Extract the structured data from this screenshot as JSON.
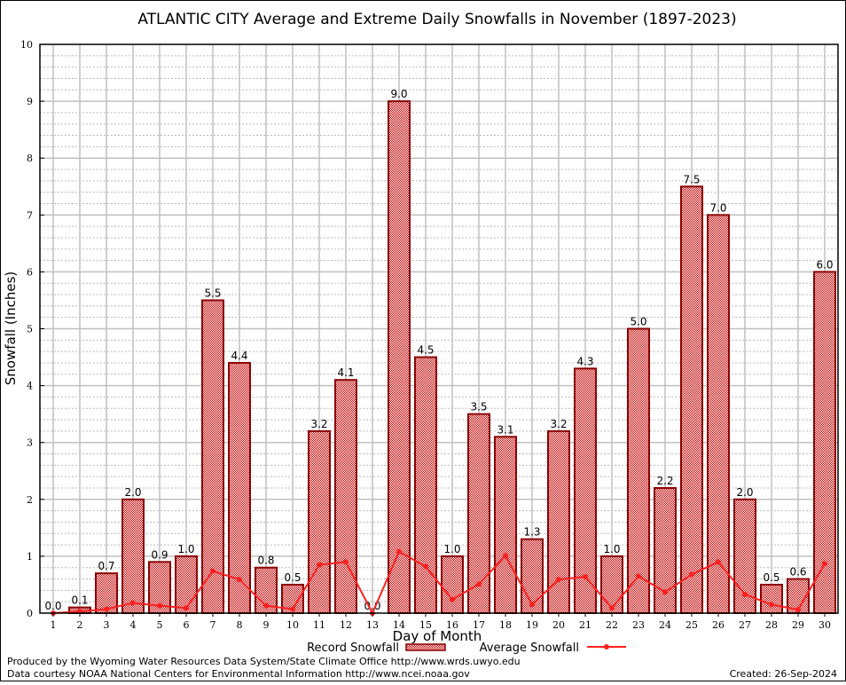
{
  "chart_data": {
    "type": "bar",
    "title": "ATLANTIC CITY Average and Extreme Daily Snowfalls in November (1897-2023)",
    "xlabel": "Day of Month",
    "ylabel": "Snowfall (Inches)",
    "ylim": [
      0,
      10
    ],
    "yticks": [
      "0",
      "1",
      "2",
      "3",
      "4",
      "5",
      "6",
      "7",
      "8",
      "9",
      "10"
    ],
    "grid": true,
    "categories": [
      "1",
      "2",
      "3",
      "4",
      "5",
      "6",
      "7",
      "8",
      "9",
      "10",
      "11",
      "12",
      "13",
      "14",
      "15",
      "16",
      "17",
      "18",
      "19",
      "20",
      "21",
      "22",
      "23",
      "24",
      "25",
      "26",
      "27",
      "28",
      "29",
      "30"
    ],
    "series": [
      {
        "name": "Record Snowfall",
        "type": "bar",
        "color": "#cc0000",
        "values": [
          0.0,
          0.1,
          0.7,
          2.0,
          0.9,
          1.0,
          5.5,
          4.4,
          0.8,
          0.5,
          3.2,
          4.1,
          0.0,
          9.0,
          4.5,
          1.0,
          3.5,
          3.1,
          1.3,
          3.2,
          4.3,
          1.0,
          5.0,
          2.2,
          7.5,
          7.0,
          2.0,
          0.5,
          0.6,
          6.0
        ],
        "labels": [
          "0.0",
          "0.1",
          "0.7",
          "2.0",
          "0.9",
          "1.0",
          "5.5",
          "4.4",
          "0.8",
          "0.5",
          "3.2",
          "4.1",
          "0.0",
          "9.0",
          "4.5",
          "1.0",
          "3.5",
          "3.1",
          "1.3",
          "3.2",
          "4.3",
          "1.0",
          "5.0",
          "2.2",
          "7.5",
          "7.0",
          "2.0",
          "0.5",
          "0.6",
          "6.0"
        ]
      },
      {
        "name": "Average Snowfall",
        "type": "line",
        "color": "#ff2020",
        "values": [
          0.0,
          0.03,
          0.07,
          0.18,
          0.13,
          0.09,
          0.74,
          0.59,
          0.13,
          0.07,
          0.85,
          0.9,
          0.0,
          1.08,
          0.82,
          0.24,
          0.51,
          1.01,
          0.15,
          0.59,
          0.64,
          0.09,
          0.65,
          0.37,
          0.68,
          0.9,
          0.33,
          0.15,
          0.06,
          0.87
        ]
      }
    ],
    "legend": "bottom-center"
  },
  "footer": {
    "produced_by": "Produced by the Wyoming Water Resources Data System/State Climate Office http://www.wrds.uwyo.edu",
    "courtesy": "Data courtesy NOAA National Centers for Environmental Information http://www.ncei.noaa.gov",
    "created": "Created: 26-Sep-2024"
  }
}
